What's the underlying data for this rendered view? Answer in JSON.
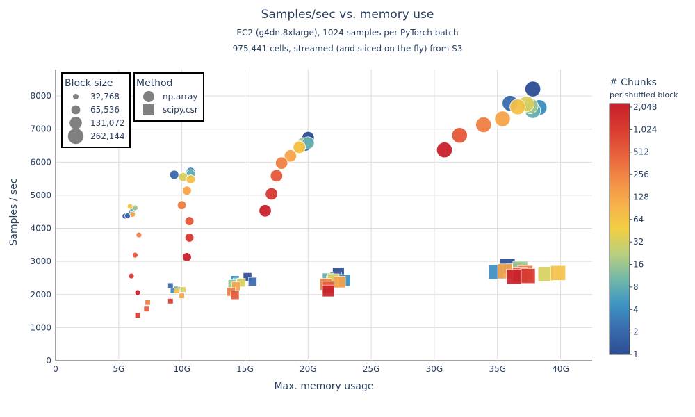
{
  "title": "Samples/sec vs. memory use",
  "subtitle_line1": "EC2 (g4dn.8xlarge), 1024 samples per PyTorch batch",
  "subtitle_line2": "975,441 cells, streamed (and sliced on the fly) from S3",
  "chart_data": {
    "type": "scatter",
    "xlabel": "Max. memory usage",
    "ylabel": "Samples / sec",
    "xlim": [
      0,
      42.5
    ],
    "ylim": [
      0,
      8800
    ],
    "x_unit": "G",
    "x_ticks": [
      {
        "value": 0,
        "label": "0"
      },
      {
        "value": 5,
        "label": "5G"
      },
      {
        "value": 10,
        "label": "10G"
      },
      {
        "value": 15,
        "label": "15G"
      },
      {
        "value": 20,
        "label": "20G"
      },
      {
        "value": 25,
        "label": "25G"
      },
      {
        "value": 30,
        "label": "30G"
      },
      {
        "value": 35,
        "label": "35G"
      },
      {
        "value": 40,
        "label": "40G"
      }
    ],
    "y_ticks": [
      {
        "value": 0,
        "label": "0"
      },
      {
        "value": 1000,
        "label": "1000"
      },
      {
        "value": 2000,
        "label": "2000"
      },
      {
        "value": 3000,
        "label": "3000"
      },
      {
        "value": 4000,
        "label": "4000"
      },
      {
        "value": 5000,
        "label": "5000"
      },
      {
        "value": 6000,
        "label": "6000"
      },
      {
        "value": 7000,
        "label": "7000"
      },
      {
        "value": 8000,
        "label": "8000"
      }
    ],
    "grid": true,
    "size_legend": {
      "title": "Block size",
      "entries": [
        {
          "label": "32,768",
          "block_size": 32768
        },
        {
          "label": "65,536",
          "block_size": 65536
        },
        {
          "label": "131,072",
          "block_size": 131072
        },
        {
          "label": "262,144",
          "block_size": 262144
        }
      ]
    },
    "method_legend": {
      "title": "Method",
      "entries": [
        {
          "label": "np.array",
          "marker": "circle"
        },
        {
          "label": "scipy.csr",
          "marker": "square"
        }
      ]
    },
    "colorbar": {
      "title": "# Chunks",
      "subtitle": "per shuffled block",
      "scale": "log2",
      "ticks": [
        {
          "value": 1,
          "label": "1"
        },
        {
          "value": 2,
          "label": "2"
        },
        {
          "value": 4,
          "label": "4"
        },
        {
          "value": 8,
          "label": "8"
        },
        {
          "value": 16,
          "label": "16"
        },
        {
          "value": 32,
          "label": "32"
        },
        {
          "value": 64,
          "label": "64"
        },
        {
          "value": 128,
          "label": "128"
        },
        {
          "value": 256,
          "label": "256"
        },
        {
          "value": 512,
          "label": "512"
        },
        {
          "value": 1024,
          "label": "1,024"
        },
        {
          "value": 2048,
          "label": "2,048"
        }
      ],
      "colors": [
        "#2c4d94",
        "#3a6bad",
        "#3d95c3",
        "#72b8a8",
        "#b9cf7e",
        "#f1cf43",
        "#f7b04b",
        "#f28b45",
        "#e8603b",
        "#d83a30",
        "#c8212b"
      ]
    },
    "series": [
      {
        "name": "np.array",
        "marker": "circle",
        "points": [
          {
            "x": 5.5,
            "y": 4370,
            "block_size": 32768,
            "chunks": 1
          },
          {
            "x": 5.7,
            "y": 4380,
            "block_size": 32768,
            "chunks": 2
          },
          {
            "x": 6.0,
            "y": 4500,
            "block_size": 32768,
            "chunks": 4
          },
          {
            "x": 6.1,
            "y": 4550,
            "block_size": 32768,
            "chunks": 8
          },
          {
            "x": 6.3,
            "y": 4620,
            "block_size": 32768,
            "chunks": 16
          },
          {
            "x": 5.9,
            "y": 4660,
            "block_size": 32768,
            "chunks": 64
          },
          {
            "x": 6.1,
            "y": 4420,
            "block_size": 32768,
            "chunks": 128
          },
          {
            "x": 6.6,
            "y": 3800,
            "block_size": 32768,
            "chunks": 256
          },
          {
            "x": 6.3,
            "y": 3190,
            "block_size": 32768,
            "chunks": 512
          },
          {
            "x": 6.0,
            "y": 2560,
            "block_size": 32768,
            "chunks": 1024
          },
          {
            "x": 6.5,
            "y": 2060,
            "block_size": 32768,
            "chunks": 2048
          },
          {
            "x": 9.4,
            "y": 5620,
            "block_size": 65536,
            "chunks": 2
          },
          {
            "x": 10.7,
            "y": 5710,
            "block_size": 65536,
            "chunks": 4
          },
          {
            "x": 10.7,
            "y": 5640,
            "block_size": 65536,
            "chunks": 8
          },
          {
            "x": 10.1,
            "y": 5550,
            "block_size": 65536,
            "chunks": 32
          },
          {
            "x": 10.7,
            "y": 5480,
            "block_size": 65536,
            "chunks": 64
          },
          {
            "x": 10.4,
            "y": 5140,
            "block_size": 65536,
            "chunks": 128
          },
          {
            "x": 10.0,
            "y": 4700,
            "block_size": 65536,
            "chunks": 256
          },
          {
            "x": 10.6,
            "y": 4220,
            "block_size": 65536,
            "chunks": 512
          },
          {
            "x": 10.6,
            "y": 3720,
            "block_size": 65536,
            "chunks": 1024
          },
          {
            "x": 10.4,
            "y": 3130,
            "block_size": 65536,
            "chunks": 2048
          },
          {
            "x": 20.0,
            "y": 6740,
            "block_size": 131072,
            "chunks": 1
          },
          {
            "x": 19.8,
            "y": 6520,
            "block_size": 131072,
            "chunks": 2
          },
          {
            "x": 19.6,
            "y": 6560,
            "block_size": 131072,
            "chunks": 16
          },
          {
            "x": 20.0,
            "y": 6580,
            "block_size": 131072,
            "chunks": 8
          },
          {
            "x": 19.3,
            "y": 6460,
            "block_size": 131072,
            "chunks": 32
          },
          {
            "x": 19.3,
            "y": 6450,
            "block_size": 131072,
            "chunks": 64
          },
          {
            "x": 18.6,
            "y": 6190,
            "block_size": 131072,
            "chunks": 128
          },
          {
            "x": 17.9,
            "y": 5970,
            "block_size": 131072,
            "chunks": 256
          },
          {
            "x": 17.5,
            "y": 5590,
            "block_size": 131072,
            "chunks": 512
          },
          {
            "x": 17.1,
            "y": 5040,
            "block_size": 131072,
            "chunks": 1024
          },
          {
            "x": 16.6,
            "y": 4530,
            "block_size": 131072,
            "chunks": 2048
          },
          {
            "x": 37.8,
            "y": 8210,
            "block_size": 262144,
            "chunks": 1
          },
          {
            "x": 36.0,
            "y": 7780,
            "block_size": 262144,
            "chunks": 2
          },
          {
            "x": 38.3,
            "y": 7650,
            "block_size": 262144,
            "chunks": 4
          },
          {
            "x": 37.8,
            "y": 7560,
            "block_size": 262144,
            "chunks": 8
          },
          {
            "x": 37.6,
            "y": 7700,
            "block_size": 262144,
            "chunks": 16
          },
          {
            "x": 37.3,
            "y": 7760,
            "block_size": 262144,
            "chunks": 32
          },
          {
            "x": 36.6,
            "y": 7670,
            "block_size": 262144,
            "chunks": 64
          },
          {
            "x": 35.4,
            "y": 7310,
            "block_size": 262144,
            "chunks": 128
          },
          {
            "x": 33.9,
            "y": 7130,
            "block_size": 262144,
            "chunks": 256
          },
          {
            "x": 32.0,
            "y": 6810,
            "block_size": 262144,
            "chunks": 512
          },
          {
            "x": 30.8,
            "y": 6370,
            "block_size": 262144,
            "chunks": 2048
          }
        ]
      },
      {
        "name": "scipy.csr",
        "marker": "square",
        "points": [
          {
            "x": 9.1,
            "y": 2270,
            "block_size": 32768,
            "chunks": 2
          },
          {
            "x": 9.3,
            "y": 2120,
            "block_size": 32768,
            "chunks": 4
          },
          {
            "x": 9.6,
            "y": 2170,
            "block_size": 32768,
            "chunks": 8
          },
          {
            "x": 9.9,
            "y": 2160,
            "block_size": 32768,
            "chunks": 16
          },
          {
            "x": 10.1,
            "y": 2150,
            "block_size": 32768,
            "chunks": 32
          },
          {
            "x": 9.6,
            "y": 2110,
            "block_size": 32768,
            "chunks": 64
          },
          {
            "x": 10.0,
            "y": 1960,
            "block_size": 32768,
            "chunks": 128
          },
          {
            "x": 7.3,
            "y": 1760,
            "block_size": 32768,
            "chunks": 256
          },
          {
            "x": 7.2,
            "y": 1560,
            "block_size": 32768,
            "chunks": 512
          },
          {
            "x": 6.5,
            "y": 1370,
            "block_size": 32768,
            "chunks": 1024
          },
          {
            "x": 9.1,
            "y": 1800,
            "block_size": 32768,
            "chunks": 1024
          },
          {
            "x": 15.2,
            "y": 2530,
            "block_size": 65536,
            "chunks": 1
          },
          {
            "x": 15.6,
            "y": 2390,
            "block_size": 65536,
            "chunks": 2
          },
          {
            "x": 14.2,
            "y": 2440,
            "block_size": 65536,
            "chunks": 4
          },
          {
            "x": 14.4,
            "y": 2370,
            "block_size": 65536,
            "chunks": 8
          },
          {
            "x": 14.0,
            "y": 2320,
            "block_size": 65536,
            "chunks": 16
          },
          {
            "x": 14.7,
            "y": 2360,
            "block_size": 65536,
            "chunks": 32
          },
          {
            "x": 14.3,
            "y": 2250,
            "block_size": 65536,
            "chunks": 128
          },
          {
            "x": 13.9,
            "y": 2080,
            "block_size": 65536,
            "chunks": 256
          },
          {
            "x": 14.2,
            "y": 1980,
            "block_size": 65536,
            "chunks": 512
          },
          {
            "x": 22.4,
            "y": 2640,
            "block_size": 131072,
            "chunks": 1
          },
          {
            "x": 22.2,
            "y": 2500,
            "block_size": 131072,
            "chunks": 2
          },
          {
            "x": 22.9,
            "y": 2430,
            "block_size": 131072,
            "chunks": 4
          },
          {
            "x": 21.6,
            "y": 2470,
            "block_size": 131072,
            "chunks": 8
          },
          {
            "x": 21.9,
            "y": 2380,
            "block_size": 131072,
            "chunks": 16
          },
          {
            "x": 22.0,
            "y": 2450,
            "block_size": 131072,
            "chunks": 32
          },
          {
            "x": 22.5,
            "y": 2380,
            "block_size": 131072,
            "chunks": 128
          },
          {
            "x": 21.4,
            "y": 2310,
            "block_size": 131072,
            "chunks": 256
          },
          {
            "x": 21.6,
            "y": 2220,
            "block_size": 131072,
            "chunks": 512
          },
          {
            "x": 21.6,
            "y": 2110,
            "block_size": 131072,
            "chunks": 2048
          },
          {
            "x": 35.8,
            "y": 2860,
            "block_size": 262144,
            "chunks": 1
          },
          {
            "x": 36.3,
            "y": 2720,
            "block_size": 262144,
            "chunks": 2
          },
          {
            "x": 34.9,
            "y": 2680,
            "block_size": 262144,
            "chunks": 4
          },
          {
            "x": 36.8,
            "y": 2780,
            "block_size": 262144,
            "chunks": 16
          },
          {
            "x": 38.8,
            "y": 2620,
            "block_size": 262144,
            "chunks": 32
          },
          {
            "x": 39.8,
            "y": 2650,
            "block_size": 262144,
            "chunks": 64
          },
          {
            "x": 35.6,
            "y": 2700,
            "block_size": 262144,
            "chunks": 128
          },
          {
            "x": 37.2,
            "y": 2650,
            "block_size": 262144,
            "chunks": 256
          },
          {
            "x": 36.8,
            "y": 2600,
            "block_size": 262144,
            "chunks": 512
          },
          {
            "x": 37.4,
            "y": 2560,
            "block_size": 262144,
            "chunks": 1024
          },
          {
            "x": 36.3,
            "y": 2540,
            "block_size": 262144,
            "chunks": 2048
          }
        ]
      }
    ]
  }
}
